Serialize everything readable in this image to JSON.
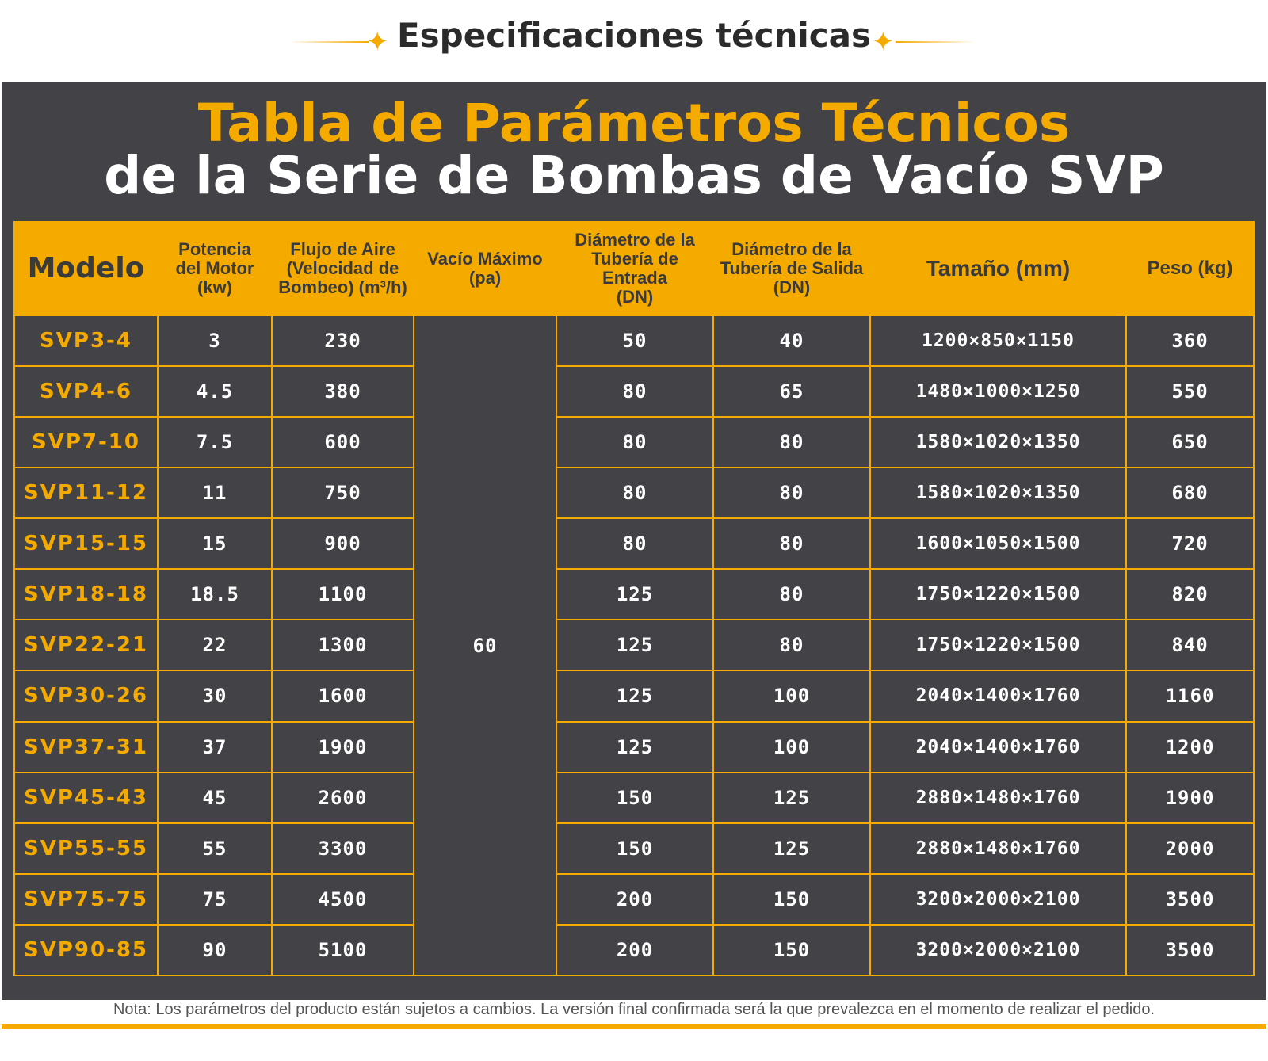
{
  "header": {
    "title": "Especificaciones técnicas"
  },
  "panel": {
    "title_line1": "Tabla de Parámetros Técnicos",
    "title_line2": "de la Serie de Bombas de Vacío SVP"
  },
  "table": {
    "headers": {
      "model": "Modelo",
      "power_l1": "Potencia",
      "power_l2": "del Motor",
      "power_l3": "(kw)",
      "flow_l1": "Flujo de Aire",
      "flow_l2": "(Velocidad de",
      "flow_l3": "Bombeo) (m³/h)",
      "vacuum_l1": "Vacío Máximo",
      "vacuum_l2": "(pa)",
      "inlet_l1": "Diámetro de la",
      "inlet_l2": "Tubería de Entrada",
      "inlet_l3": "(DN)",
      "outlet_l1": "Diámetro de la",
      "outlet_l2": "Tubería de Salida",
      "outlet_l3": "(DN)",
      "size": "Tamaño (mm)",
      "weight": "Peso (kg)"
    },
    "max_vacuum": "60",
    "rows": [
      {
        "model": "SVP3-4",
        "power": "3",
        "flow": "230",
        "inlet": "50",
        "outlet": "40",
        "size": "1200×850×1150",
        "weight": "360"
      },
      {
        "model": "SVP4-6",
        "power": "4.5",
        "flow": "380",
        "inlet": "80",
        "outlet": "65",
        "size": "1480×1000×1250",
        "weight": "550"
      },
      {
        "model": "SVP7-10",
        "power": "7.5",
        "flow": "600",
        "inlet": "80",
        "outlet": "80",
        "size": "1580×1020×1350",
        "weight": "650"
      },
      {
        "model": "SVP11-12",
        "power": "11",
        "flow": "750",
        "inlet": "80",
        "outlet": "80",
        "size": "1580×1020×1350",
        "weight": "680"
      },
      {
        "model": "SVP15-15",
        "power": "15",
        "flow": "900",
        "inlet": "80",
        "outlet": "80",
        "size": "1600×1050×1500",
        "weight": "720"
      },
      {
        "model": "SVP18-18",
        "power": "18.5",
        "flow": "1100",
        "inlet": "125",
        "outlet": "80",
        "size": "1750×1220×1500",
        "weight": "820"
      },
      {
        "model": "SVP22-21",
        "power": "22",
        "flow": "1300",
        "inlet": "125",
        "outlet": "80",
        "size": "1750×1220×1500",
        "weight": "840"
      },
      {
        "model": "SVP30-26",
        "power": "30",
        "flow": "1600",
        "inlet": "125",
        "outlet": "100",
        "size": "2040×1400×1760",
        "weight": "1160"
      },
      {
        "model": "SVP37-31",
        "power": "37",
        "flow": "1900",
        "inlet": "125",
        "outlet": "100",
        "size": "2040×1400×1760",
        "weight": "1200"
      },
      {
        "model": "SVP45-43",
        "power": "45",
        "flow": "2600",
        "inlet": "150",
        "outlet": "125",
        "size": "2880×1480×1760",
        "weight": "1900"
      },
      {
        "model": "SVP55-55",
        "power": "55",
        "flow": "3300",
        "inlet": "150",
        "outlet": "125",
        "size": "2880×1480×1760",
        "weight": "2000"
      },
      {
        "model": "SVP75-75",
        "power": "75",
        "flow": "4500",
        "inlet": "200",
        "outlet": "150",
        "size": "3200×2000×2100",
        "weight": "3500"
      },
      {
        "model": "SVP90-85",
        "power": "90",
        "flow": "5100",
        "inlet": "200",
        "outlet": "150",
        "size": "3200×2000×2100",
        "weight": "3500"
      }
    ]
  },
  "footer": {
    "note": "Nota: Los parámetros del producto están sujetos a cambios. La versión final confirmada será la que prevalezca en el momento de realizar el pedido."
  },
  "colors": {
    "accent": "#f5aa00",
    "panel": "#434246",
    "text_dark": "#3a3a3a"
  },
  "icons": {
    "star": "sparkle-star-icon"
  }
}
